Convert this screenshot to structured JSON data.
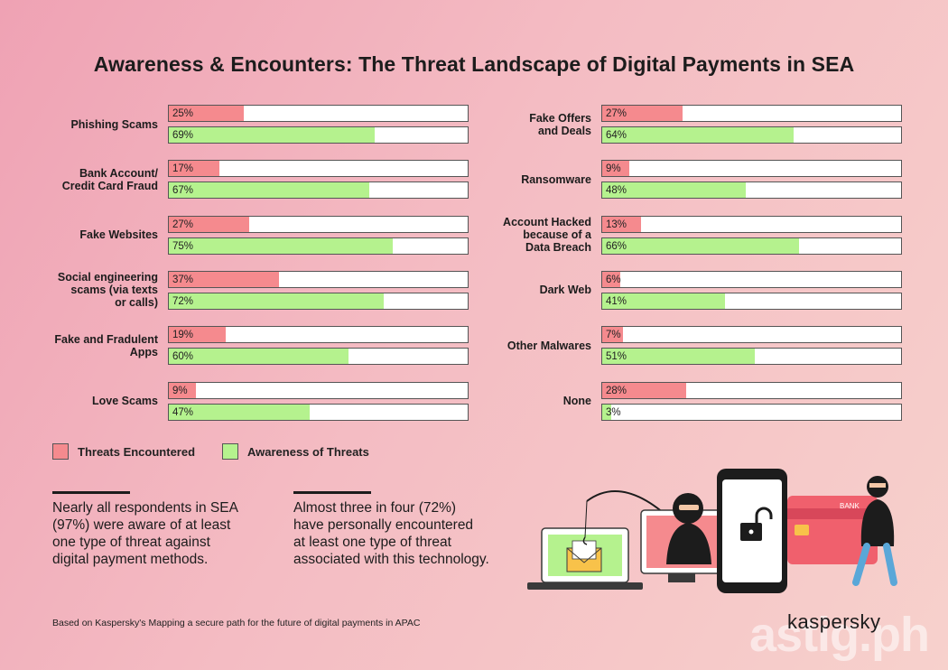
{
  "title": "Awareness & Encounters: The Threat Landscape of Digital Payments in SEA",
  "chart_data": {
    "type": "bar",
    "orientation": "horizontal",
    "series": [
      {
        "name": "Threats Encountered",
        "color": "#f58a8e"
      },
      {
        "name": "Awareness of Threats",
        "color": "#b5f28e"
      }
    ],
    "xlim": [
      0,
      100
    ],
    "unit": "%",
    "categories": [
      {
        "label": "Phishing Scams",
        "threat": 25,
        "aware": 69,
        "threat_label": "25%",
        "aware_label": "69%"
      },
      {
        "label": "Bank Account/\nCredit Card Fraud",
        "threat": 17,
        "aware": 67,
        "threat_label": "17%",
        "aware_label": "67%"
      },
      {
        "label": "Fake Websites",
        "threat": 27,
        "aware": 75,
        "threat_label": "27%",
        "aware_label": "75%"
      },
      {
        "label": "Social engineering\nscams  (via texts\nor calls)",
        "threat": 37,
        "aware": 72,
        "threat_label": "37%",
        "aware_label": "72%"
      },
      {
        "label": "Fake and Fradulent\nApps",
        "threat": 19,
        "aware": 60,
        "threat_label": "19%",
        "aware_label": "60%"
      },
      {
        "label": "Love Scams",
        "threat": 9,
        "aware": 47,
        "threat_label": "9%",
        "aware_label": "47%"
      },
      {
        "label": "Fake Offers\nand Deals",
        "threat": 27,
        "aware": 64,
        "threat_label": "27%",
        "aware_label": "64%"
      },
      {
        "label": "Ransomware",
        "threat": 9,
        "aware": 48,
        "threat_label": "9%",
        "aware_label": "48%"
      },
      {
        "label": "Account Hacked\nbecause of a\nData Breach",
        "threat": 13,
        "aware": 66,
        "threat_label": "13%",
        "aware_label": "66%"
      },
      {
        "label": "Dark Web",
        "threat": 6,
        "aware": 41,
        "threat_label": "6%",
        "aware_label": "41%"
      },
      {
        "label": "Other Malwares",
        "threat": 7,
        "aware": 51,
        "threat_label": "7%",
        "aware_label": "51%"
      },
      {
        "label": "None",
        "threat": 28,
        "aware": 3,
        "threat_label": "28%",
        "aware_label": "3%"
      }
    ]
  },
  "legend": {
    "threat_label": "Threats Encountered",
    "aware_label": "Awareness of Threats"
  },
  "callouts": [
    "Nearly all respondents in SEA\n(97%) were aware of at least\none type of threat against\ndigital payment methods.",
    "Almost three in four (72%)\nhave personally encountered\nat least one type of threat\nassociated with this technology."
  ],
  "footnote": "Based on Kaspersky's Mapping a secure path for the future of digital payments in APAC",
  "brand": "kaspersky",
  "watermark": "astig.ph",
  "illustration": {
    "bank_card_text": "BANK",
    "icons": [
      "laptop-icon",
      "envelope-icon",
      "hacker-icon",
      "fishing-rod-icon",
      "smartphone-icon",
      "unlocked-padlock-icon",
      "bank-card-icon",
      "thief-icon"
    ]
  }
}
